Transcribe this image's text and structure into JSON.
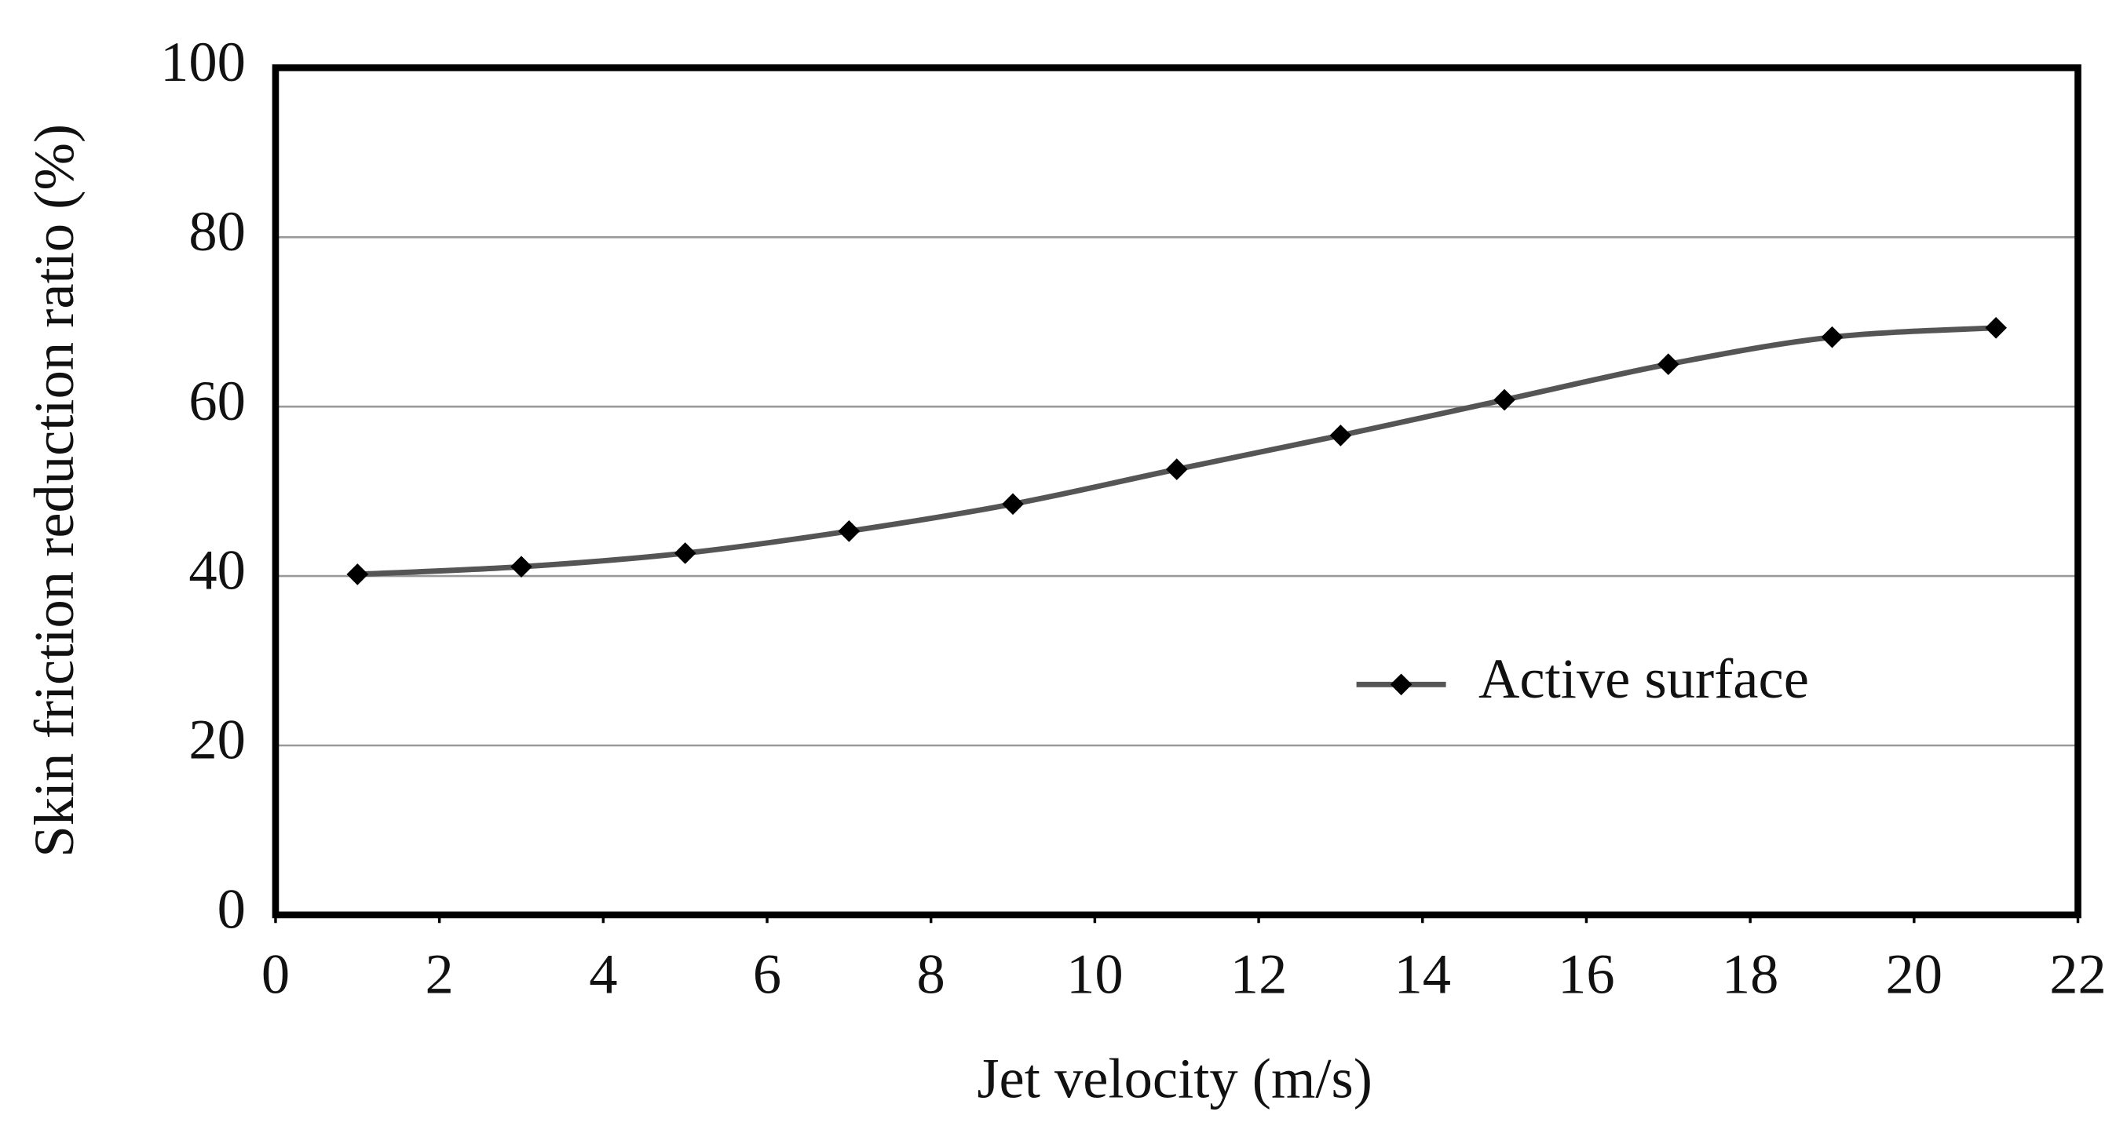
{
  "chart_data": {
    "type": "line",
    "x_label": "Jet velocity (m/s)",
    "y_label": "Skin friction reduction ratio (%)",
    "x": [
      1,
      3,
      5,
      7,
      9,
      11,
      13,
      15,
      17,
      19,
      21
    ],
    "series": [
      {
        "name": "Active surface",
        "color": "#555555",
        "values": [
          40.2,
          41.1,
          42.7,
          45.3,
          48.5,
          52.6,
          56.6,
          60.8,
          65,
          68.2,
          69.3
        ]
      }
    ],
    "xlim": [
      0,
      22
    ],
    "xticks": [
      0,
      2,
      4,
      6,
      8,
      10,
      12,
      14,
      16,
      18,
      20,
      22
    ],
    "ylim": [
      0,
      100
    ],
    "yticks": [
      0,
      20,
      40,
      60,
      80,
      100
    ],
    "grid": true,
    "legend": "right"
  }
}
